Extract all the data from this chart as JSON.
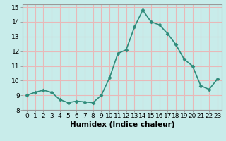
{
  "x": [
    0,
    1,
    2,
    3,
    4,
    5,
    6,
    7,
    8,
    9,
    10,
    11,
    12,
    13,
    14,
    15,
    16,
    17,
    18,
    19,
    20,
    21,
    22,
    23
  ],
  "y": [
    9.0,
    9.2,
    9.35,
    9.2,
    8.7,
    8.5,
    8.6,
    8.55,
    8.5,
    9.0,
    10.2,
    11.85,
    12.1,
    13.65,
    14.8,
    14.0,
    13.8,
    13.2,
    12.45,
    11.45,
    11.0,
    9.65,
    9.4,
    10.1
  ],
  "line_color": "#2e8b7a",
  "marker": "D",
  "marker_size": 2.5,
  "line_width": 1.2,
  "bg_color": "#c8ecea",
  "grid_color": "#e8b8b8",
  "xlabel": "Humidex (Indice chaleur)",
  "xlim": [
    -0.5,
    23.5
  ],
  "ylim": [
    8.0,
    15.2
  ],
  "yticks": [
    8,
    9,
    10,
    11,
    12,
    13,
    14,
    15
  ],
  "xticks": [
    0,
    1,
    2,
    3,
    4,
    5,
    6,
    7,
    8,
    9,
    10,
    11,
    12,
    13,
    14,
    15,
    16,
    17,
    18,
    19,
    20,
    21,
    22,
    23
  ],
  "xtick_labels": [
    "0",
    "1",
    "2",
    "3",
    "4",
    "5",
    "6",
    "7",
    "8",
    "9",
    "10",
    "11",
    "12",
    "13",
    "14",
    "15",
    "16",
    "17",
    "18",
    "19",
    "20",
    "21",
    "22",
    "23"
  ],
  "tick_fontsize": 6.5,
  "label_fontsize": 7.5
}
